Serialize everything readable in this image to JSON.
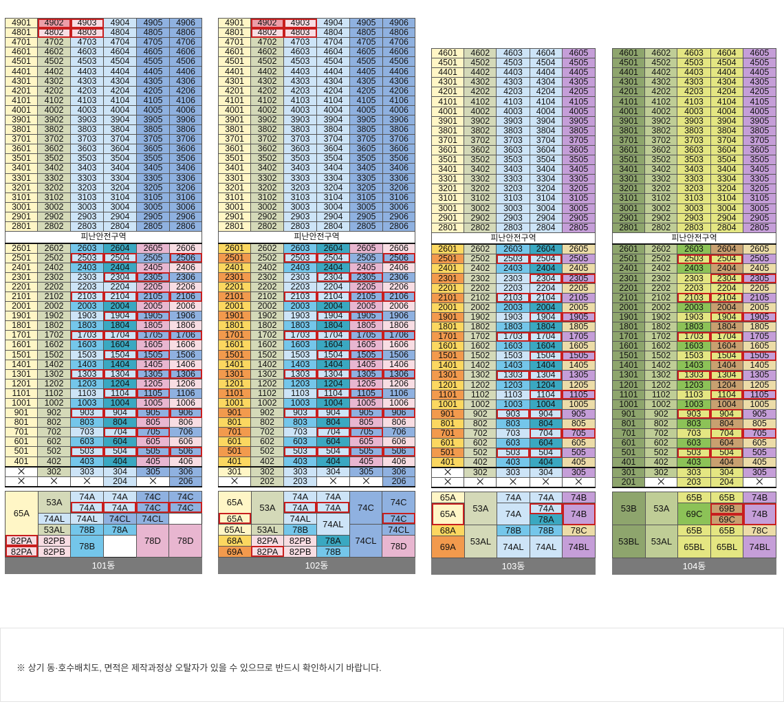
{
  "colors": {
    "pale_yellow": "#fff6c6",
    "sage": "#d4d9b8",
    "light_blue": "#cde4f7",
    "blue": "#8fb1e0",
    "sky": "#74c6ea",
    "teal": "#3aa8c1",
    "pink": "#e8b6d0",
    "light_pink": "#f8dde3",
    "red_pink": "#ec9ea8",
    "purple": "#c59ed8",
    "yellow": "#fbd760",
    "orange": "#f29a4d",
    "olive_dark": "#8ea56d",
    "olive_mid": "#bfcd96",
    "olive_yellow": "#e4e682",
    "green": "#8cc257",
    "tan": "#c8a070",
    "light_tan": "#ecdca8",
    "gray_label": "#7a7a7a",
    "red_outline": "#c81e1e"
  },
  "refuge_label": "피난안전구역",
  "buildings": [
    {
      "name": "101동",
      "top_floor": 49,
      "units": 6
    },
    {
      "name": "102동",
      "top_floor": 49,
      "units": 6
    },
    {
      "name": "103동",
      "top_floor": 46,
      "units": 5
    },
    {
      "name": "104동",
      "top_floor": 46,
      "units": 5
    }
  ],
  "footnote": "※ 상기 동·호수배치도, 면적은 제작과정상 오탈자가 있을 수 있으므로 반드시 확인하시기 바랍니다."
}
